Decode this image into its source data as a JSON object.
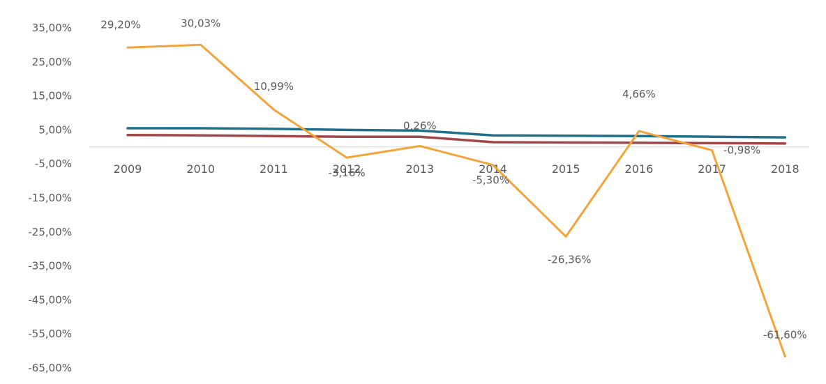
{
  "chart_data": {
    "type": "line",
    "title": "",
    "xlabel": "",
    "ylabel": "",
    "categories": [
      "2009",
      "2010",
      "2011",
      "2012",
      "2013",
      "2014",
      "2015",
      "2016",
      "2017",
      "2018"
    ],
    "ylim": [
      -65,
      35
    ],
    "y_ticks": [
      35,
      25,
      15,
      5,
      -5,
      -15,
      -25,
      -35,
      -45,
      -55,
      -65
    ],
    "y_tick_labels": [
      "35,00%",
      "25,00%",
      "15,00%",
      "5,00%",
      "-5,00%",
      "-15,00%",
      "-25,00%",
      "-35,00%",
      "-45,00%",
      "-55,00%",
      "-65,00%"
    ],
    "grid": false,
    "legend": "none",
    "series": [
      {
        "color": "#F2A33A",
        "values": [
          29.2,
          30.03,
          10.99,
          -3.16,
          0.26,
          -5.3,
          -26.36,
          4.66,
          -0.98,
          -61.6
        ],
        "data_labels": [
          "29,20%",
          "30,03%",
          "10,99%",
          "-3,16%",
          "0,26%",
          "-5,30%",
          "-26,36%",
          "4,66%",
          "-0,98%",
          "-61,60%"
        ]
      },
      {
        "color": "#1F6E8C",
        "values": [
          5.5,
          5.5,
          5.3,
          5.0,
          4.8,
          3.4,
          3.3,
          3.2,
          3.0,
          2.8
        ]
      },
      {
        "color": "#A04848",
        "values": [
          3.5,
          3.4,
          3.2,
          3.0,
          3.0,
          1.4,
          1.3,
          1.2,
          1.1,
          1.0
        ]
      }
    ]
  }
}
